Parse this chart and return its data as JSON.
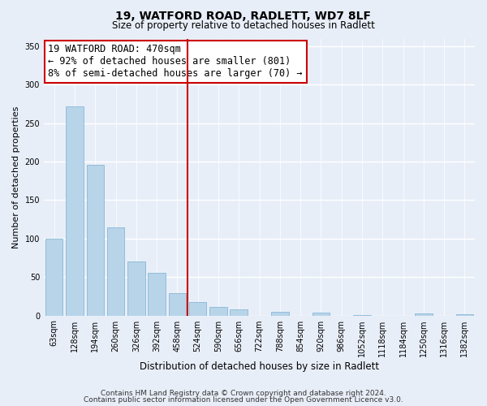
{
  "title1": "19, WATFORD ROAD, RADLETT, WD7 8LF",
  "title2": "Size of property relative to detached houses in Radlett",
  "xlabel": "Distribution of detached houses by size in Radlett",
  "ylabel": "Number of detached properties",
  "categories": [
    "63sqm",
    "128sqm",
    "194sqm",
    "260sqm",
    "326sqm",
    "392sqm",
    "458sqm",
    "524sqm",
    "590sqm",
    "656sqm",
    "722sqm",
    "788sqm",
    "854sqm",
    "920sqm",
    "986sqm",
    "1052sqm",
    "1118sqm",
    "1184sqm",
    "1250sqm",
    "1316sqm",
    "1382sqm"
  ],
  "values": [
    100,
    272,
    196,
    115,
    70,
    55,
    29,
    17,
    11,
    8,
    0,
    5,
    0,
    4,
    0,
    1,
    0,
    0,
    3,
    0,
    2
  ],
  "bar_color": "#b8d4e8",
  "bar_edge_color": "#88b8d8",
  "vline_color": "#cc0000",
  "annotation_title": "19 WATFORD ROAD: 470sqm",
  "annotation_line1": "← 92% of detached houses are smaller (801)",
  "annotation_line2": "8% of semi-detached houses are larger (70) →",
  "annotation_box_facecolor": "#ffffff",
  "annotation_box_edgecolor": "#cc0000",
  "ylim": [
    0,
    360
  ],
  "yticks": [
    0,
    50,
    100,
    150,
    200,
    250,
    300,
    350
  ],
  "footer1": "Contains HM Land Registry data © Crown copyright and database right 2024.",
  "footer2": "Contains public sector information licensed under the Open Government Licence v3.0.",
  "bg_color": "#e8eef8",
  "plot_bg_color": "#e8eef8",
  "grid_color": "#ffffff",
  "title1_fontsize": 10,
  "title2_fontsize": 8.5,
  "ylabel_fontsize": 8,
  "xlabel_fontsize": 8.5,
  "tick_fontsize": 7,
  "footer_fontsize": 6.5
}
